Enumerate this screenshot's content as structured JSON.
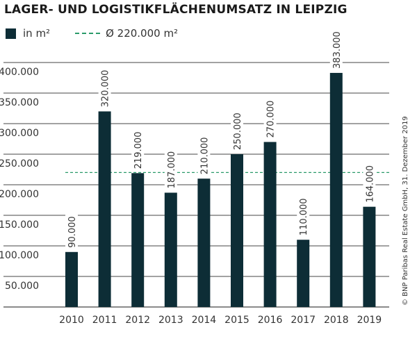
{
  "chart_data": {
    "type": "bar",
    "title": "LAGER- UND LOGISTIKFLÄCHENUMSATZ IN LEIPZIG",
    "categories": [
      "2010",
      "2011",
      "2012",
      "2013",
      "2014",
      "2015",
      "2016",
      "2017",
      "2018",
      "2019"
    ],
    "series": [
      {
        "name": "in m²",
        "values": [
          90000,
          320000,
          219000,
          187000,
          210000,
          250000,
          270000,
          110000,
          383000,
          164000
        ],
        "labels": [
          "90.000",
          "320.000",
          "219.000",
          "187.000",
          "210.000",
          "250.000",
          "270.000",
          "110.000",
          "383.000",
          "164.000"
        ]
      }
    ],
    "reference_line": {
      "label": "Ø 220.000 m²",
      "value": 220000
    },
    "yticks": [
      50000,
      100000,
      150000,
      200000,
      250000,
      300000,
      350000,
      400000
    ],
    "ytick_labels": [
      "50.000",
      "100.000",
      "150.000",
      "200.000",
      "250.000",
      "300.000",
      "350.000",
      "400.000"
    ],
    "ylim": [
      0,
      400000
    ],
    "grid": true,
    "legend_position": "top-left",
    "colors": {
      "bar": "#0d2d36",
      "reference": "#2a9a6a",
      "grid": "#444444"
    },
    "source": "© BNP Paribas Real Estate GmbH, 31. Dezember 2019"
  }
}
